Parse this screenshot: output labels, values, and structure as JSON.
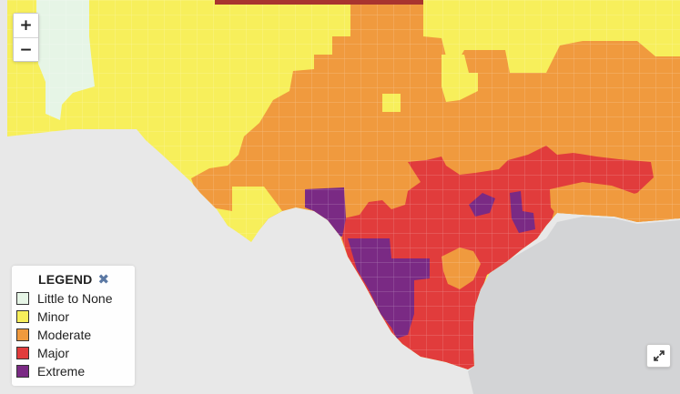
{
  "map": {
    "colors": {
      "water": "#d3d4d6",
      "land_outside": "#e8e8e8",
      "little_to_none": "#e6f5e6",
      "minor": "#f7ef5b",
      "moderate": "#f09a3e",
      "major": "#e13c3c",
      "extreme": "#7a2a84",
      "top_bar": "#a8342f"
    }
  },
  "zoom": {
    "in_label": "+",
    "out_label": "−"
  },
  "legend": {
    "title": "LEGEND",
    "close_label": "✖",
    "items": [
      {
        "label": "Little to None",
        "color": "#e6f5e6"
      },
      {
        "label": "Minor",
        "color": "#f7ef5b"
      },
      {
        "label": "Moderate",
        "color": "#f09a3e"
      },
      {
        "label": "Major",
        "color": "#e13c3c"
      },
      {
        "label": "Extreme",
        "color": "#7a2a84"
      }
    ]
  },
  "controls": {
    "expand_icon": "expand-icon"
  }
}
